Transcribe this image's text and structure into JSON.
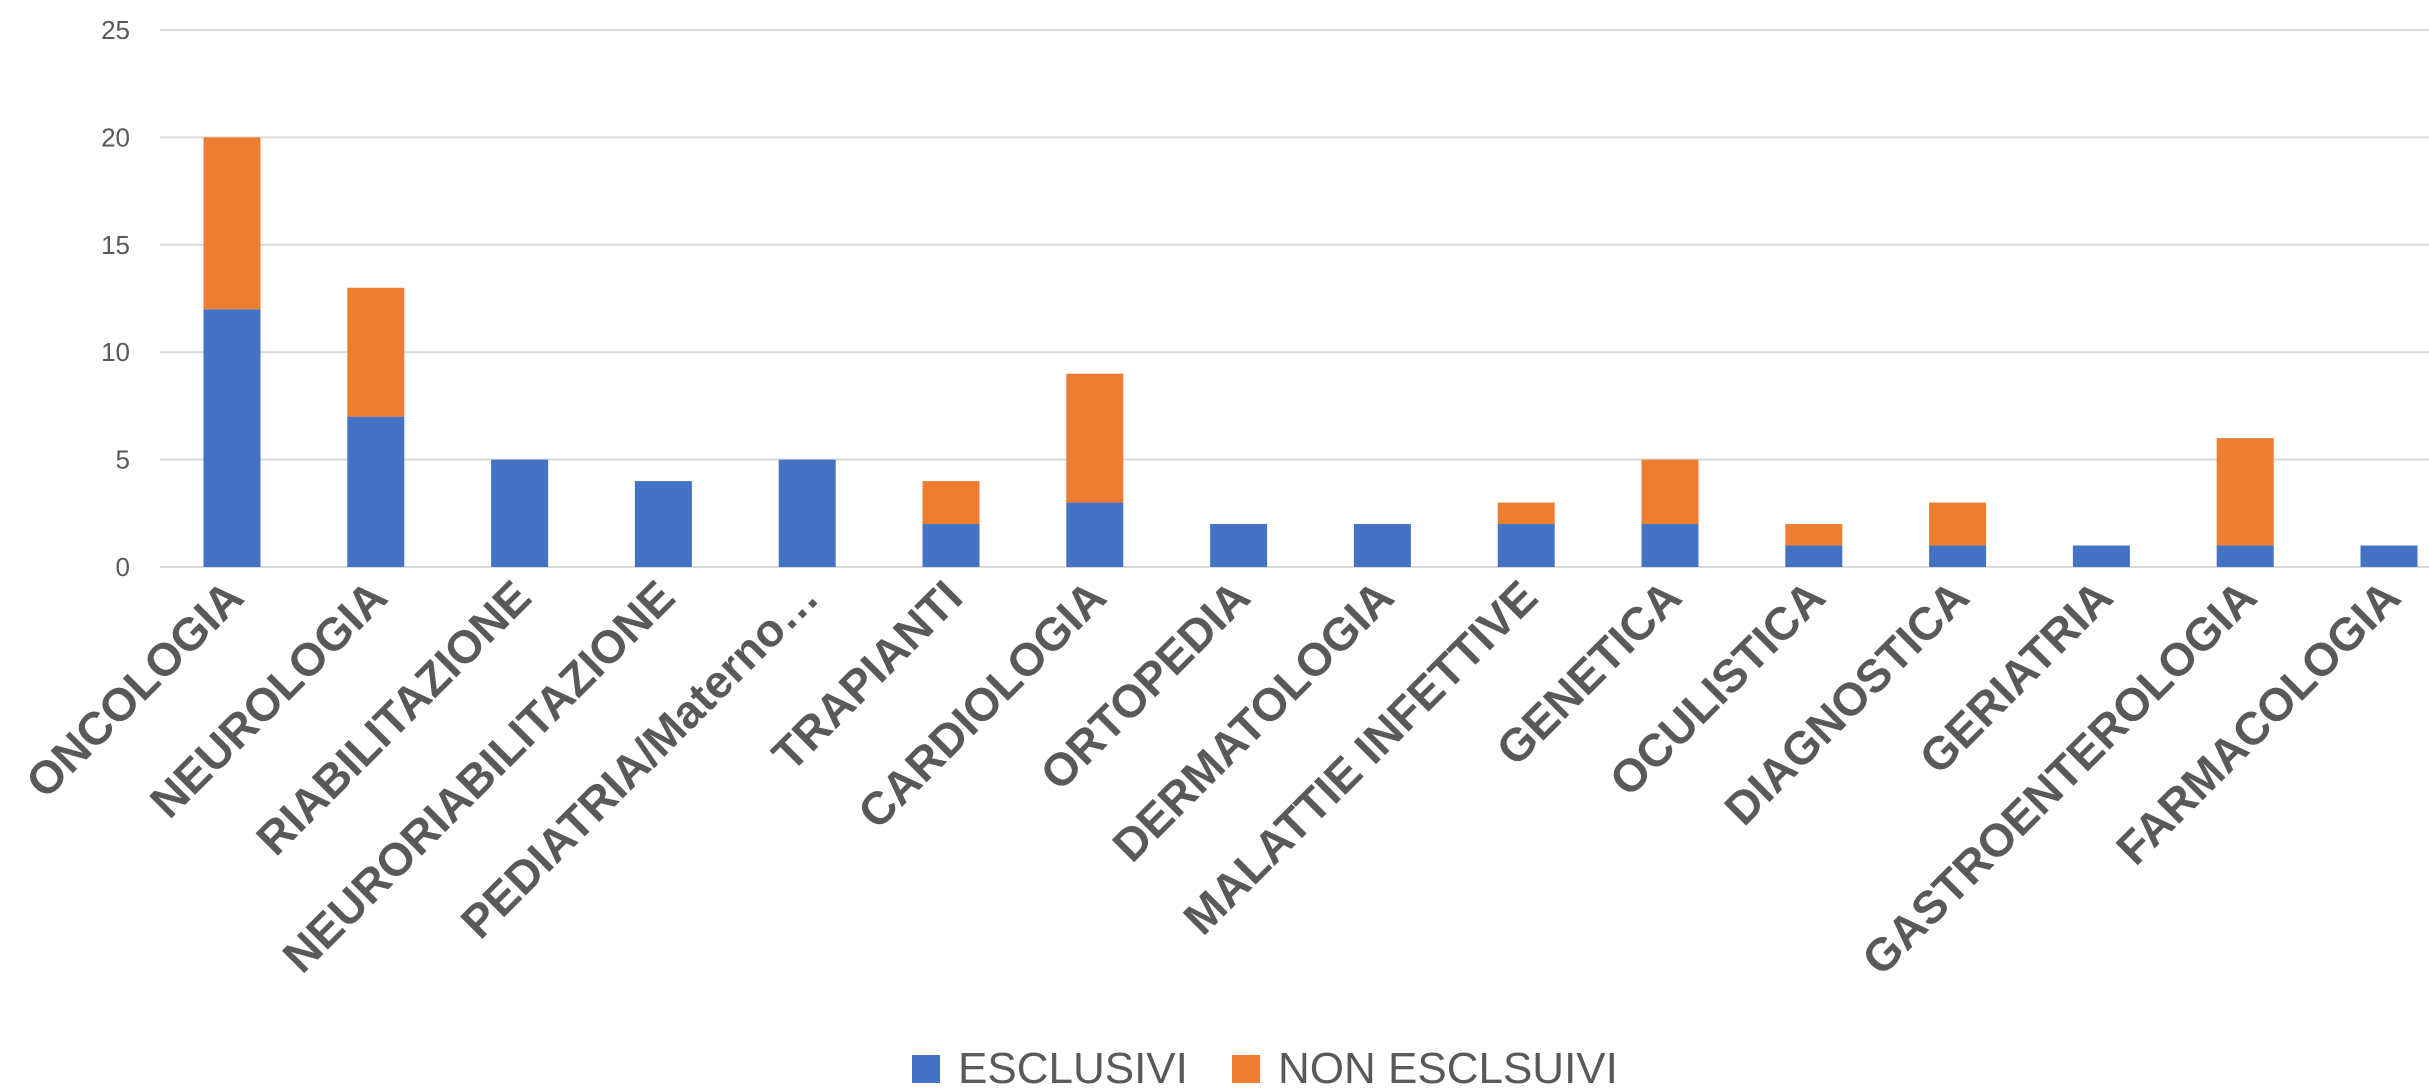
{
  "chart_data": {
    "type": "bar",
    "stacked": true,
    "categories": [
      "ONCOLOGIA",
      "NEUROLOGIA",
      "RIABILITAZIONE",
      "NEURORIABILITAZIONE",
      "PEDIATRIA/Materno…",
      "TRAPIANTI",
      "CARDIOLOGIA",
      "ORTOPEDIA",
      "DERMATOLOGIA",
      "MALATTIE INFETTIVE",
      "GENETICA",
      "OCULISTICA",
      "DIAGNOSTICA",
      "GERIATRIA",
      "GASTROENTEROLOGIA",
      "FARMACOLOGIA"
    ],
    "series": [
      {
        "name": "ESCLUSIVI",
        "color": "#4472C4",
        "values": [
          12,
          7,
          5,
          4,
          5,
          2,
          3,
          2,
          2,
          2,
          2,
          1,
          1,
          1,
          1,
          1
        ]
      },
      {
        "name": "NON ESCLSUIVI",
        "color": "#ED7D31",
        "values": [
          8,
          6,
          0,
          0,
          0,
          2,
          6,
          0,
          0,
          1,
          3,
          1,
          2,
          0,
          5,
          0
        ]
      }
    ],
    "ylim": [
      0,
      25
    ],
    "yticks": [
      0,
      5,
      10,
      15,
      20,
      25
    ],
    "grid": true,
    "legend_position": "bottom"
  }
}
